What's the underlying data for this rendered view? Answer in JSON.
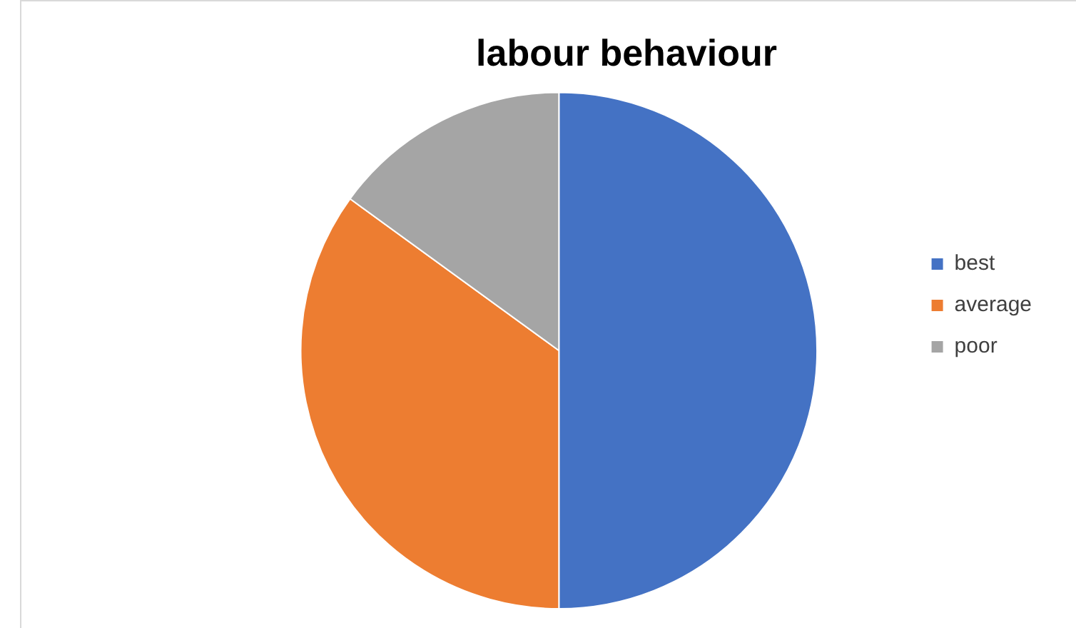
{
  "chart_data": {
    "type": "pie",
    "title": "labour behaviour",
    "categories": [
      "best",
      "average",
      "poor"
    ],
    "values": [
      50,
      35,
      15
    ],
    "colors": [
      "#4472c4",
      "#ed7d31",
      "#a5a5a5"
    ],
    "legend": "right"
  }
}
